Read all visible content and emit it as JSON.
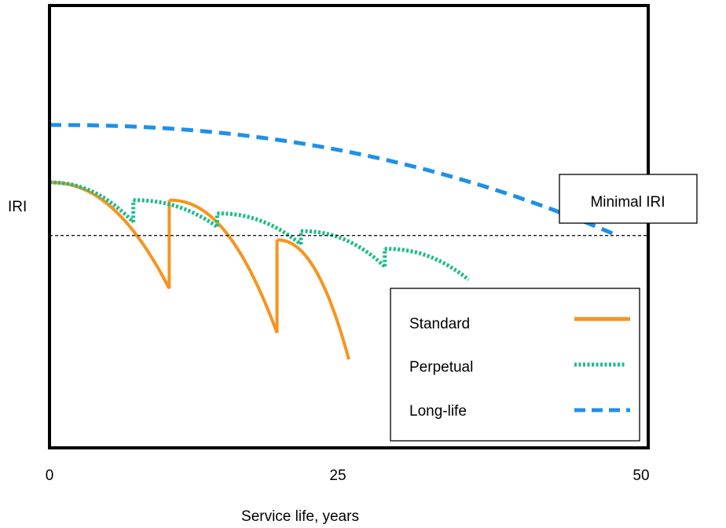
{
  "chart_data": {
    "type": "line",
    "xlabel": "Service life, years",
    "ylabel": "IRI",
    "xlim": [
      0,
      50
    ],
    "x_ticks": [
      "0",
      "25",
      "50"
    ],
    "grid": false,
    "legend_position": "bottom-right",
    "threshold": {
      "label": "Minimal IRI",
      "y": 0.48,
      "style": "dashed",
      "color": "#000000"
    },
    "series": [
      {
        "name": "Standard",
        "color": "#F7941D",
        "style": "solid",
        "segments": [
          {
            "x0": 0,
            "y0": 0.6,
            "x1": 10,
            "y1": 0.36
          },
          {
            "x0": 10,
            "y0": 0.56,
            "x1": 19,
            "y1": 0.26
          },
          {
            "x0": 19,
            "y0": 0.47,
            "x1": 25,
            "y1": 0.2
          }
        ]
      },
      {
        "name": "Perpetual",
        "color": "#1ABC8C",
        "style": "dotted",
        "segments": [
          {
            "x0": 0,
            "y0": 0.6,
            "x1": 7,
            "y1": 0.51
          },
          {
            "x0": 7,
            "y0": 0.56,
            "x1": 14,
            "y1": 0.5
          },
          {
            "x0": 14,
            "y0": 0.53,
            "x1": 21,
            "y1": 0.46
          },
          {
            "x0": 21,
            "y0": 0.49,
            "x1": 28,
            "y1": 0.41
          },
          {
            "x0": 28,
            "y0": 0.45,
            "x1": 35,
            "y1": 0.38
          }
        ]
      },
      {
        "name": "Long-life",
        "color": "#1E90E8",
        "style": "dashed",
        "segments": [
          {
            "x0": 0,
            "y0": 0.73,
            "x1": 47,
            "y1": 0.485
          }
        ]
      }
    ]
  }
}
